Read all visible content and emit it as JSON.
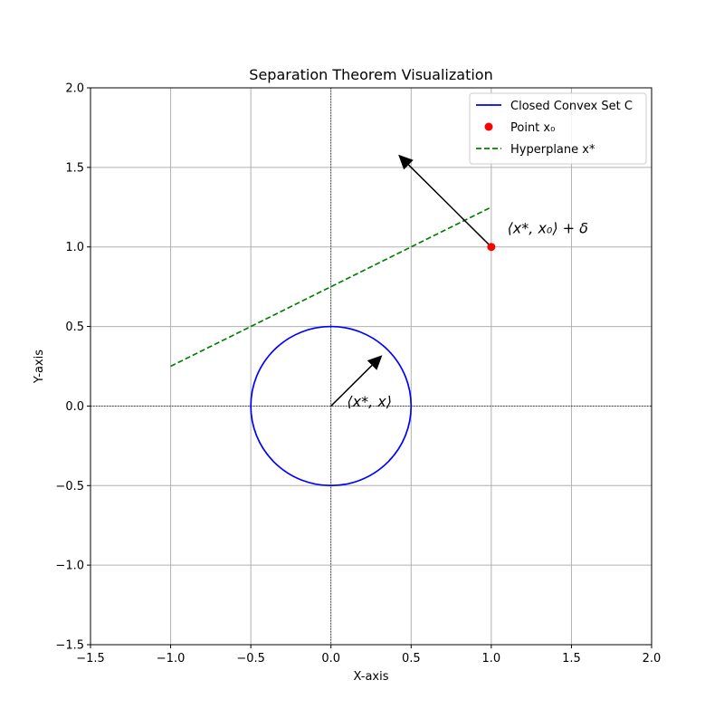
{
  "chart_data": {
    "type": "line",
    "title": "Separation Theorem Visualization",
    "xlabel": "X-axis",
    "ylabel": "Y-axis",
    "xlim": [
      -1.5,
      2.0
    ],
    "ylim": [
      -1.5,
      2.0
    ],
    "xticks": [
      -1.5,
      -1.0,
      -0.5,
      0.0,
      0.5,
      1.0,
      1.5,
      2.0
    ],
    "yticks": [
      -1.5,
      -1.0,
      -0.5,
      0.0,
      0.5,
      1.0,
      1.5,
      2.0
    ],
    "xtick_labels": [
      "−1.5",
      "−1.0",
      "−0.5",
      "0.0",
      "0.5",
      "1.0",
      "1.5",
      "2.0"
    ],
    "ytick_labels": [
      "−1.5",
      "−1.0",
      "−0.5",
      "0.0",
      "0.5",
      "1.0",
      "1.5",
      "2.0"
    ],
    "grid": true,
    "legend_position": "top-right",
    "circle": {
      "name": "Closed Convex Set C",
      "center": [
        0,
        0
      ],
      "radius": 0.5,
      "color": "#0000ff"
    },
    "point": {
      "name": "Point x₀",
      "x": 1.0,
      "y": 1.0,
      "color": "#ff0000"
    },
    "hyperplane": {
      "name": "Hyperplane x*",
      "x": [
        -1.0,
        1.0
      ],
      "y": [
        0.25,
        1.25
      ],
      "color": "#008000",
      "style": "dashed"
    },
    "reference_lines": {
      "x": 0.0,
      "y": 0.0,
      "color": "#000000",
      "style": "dotted"
    },
    "arrows": [
      {
        "from": [
          0.0,
          0.0
        ],
        "to": [
          0.32,
          0.32
        ],
        "color": "#000000"
      },
      {
        "from": [
          1.0,
          1.0
        ],
        "to": [
          0.42,
          1.58
        ],
        "color": "#000000"
      }
    ],
    "annotations": [
      {
        "text": "⟨x*, x⟩",
        "x": 0.1,
        "y": 0.03
      },
      {
        "text": "⟨x*, x₀⟩ + δ",
        "x": 1.1,
        "y": 1.12
      }
    ]
  }
}
